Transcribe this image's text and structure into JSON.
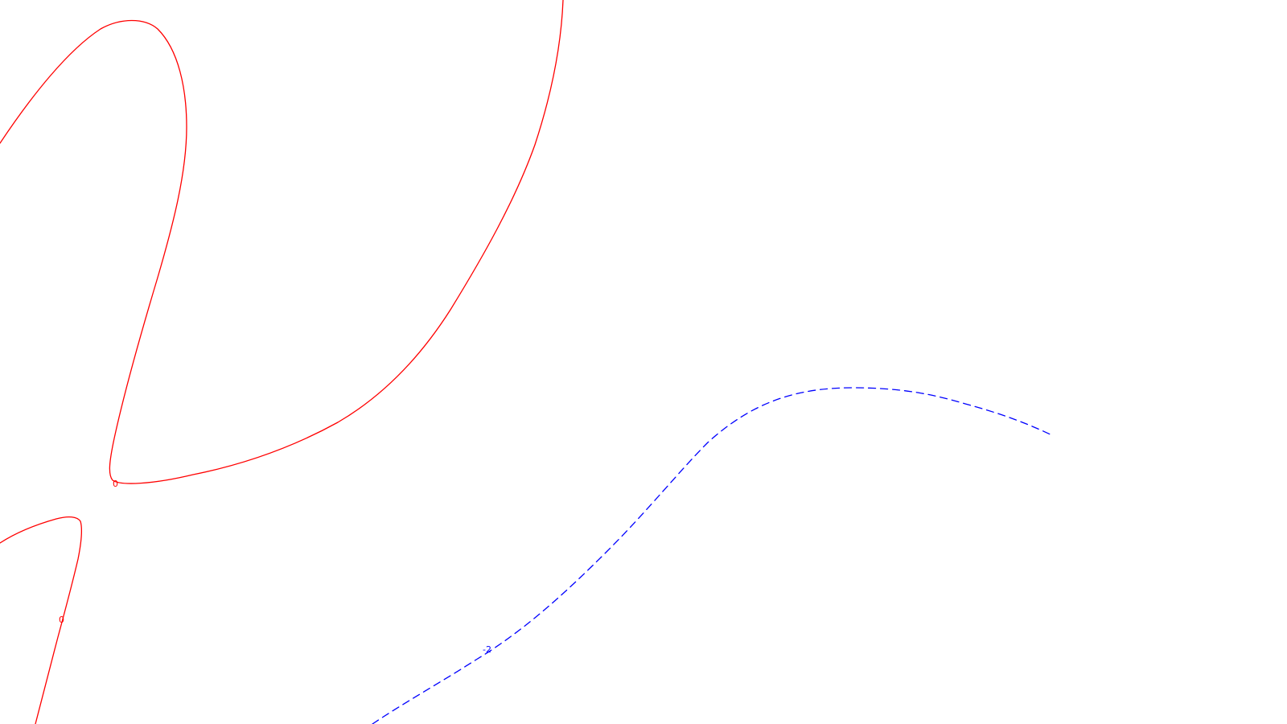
{
  "contours": [
    {
      "level_label": "0",
      "color": "#ff0000",
      "style": "solid"
    },
    {
      "level_label": "0",
      "color": "#ff0000",
      "style": "solid"
    },
    {
      "level_label": "-2",
      "color": "#0000ff",
      "style": "dashed"
    }
  ]
}
